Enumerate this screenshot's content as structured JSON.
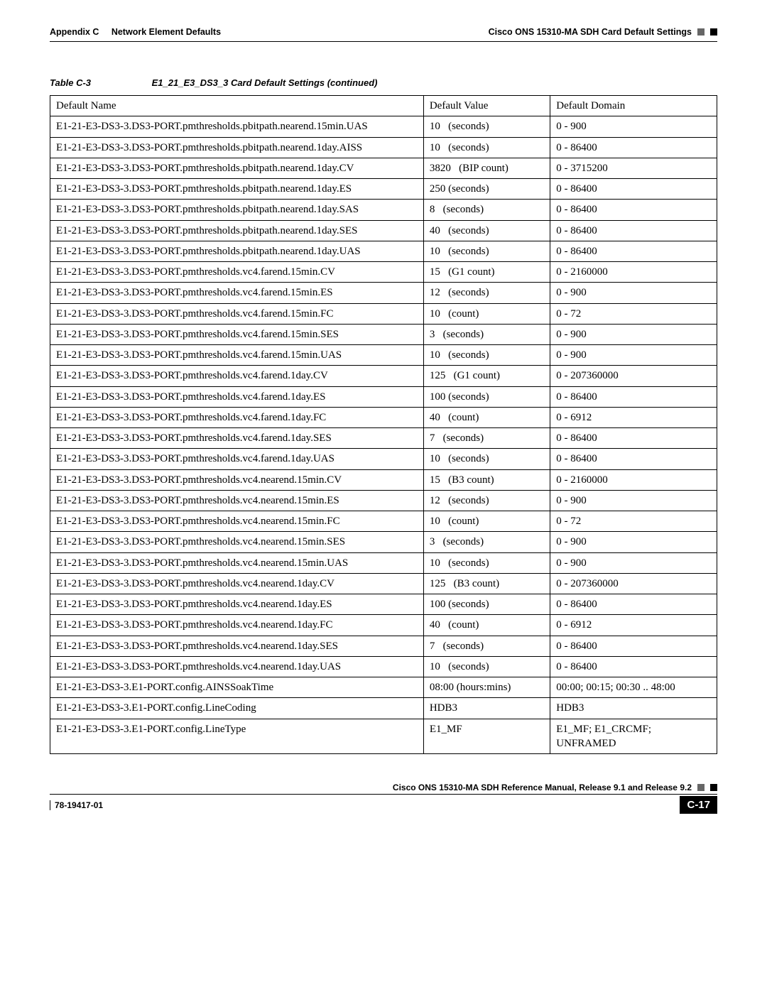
{
  "header": {
    "appendix": "Appendix C",
    "appendix_title": "Network Element Defaults",
    "section_title": "Cisco ONS 15310-MA SDH Card Default Settings"
  },
  "table": {
    "label": "Table C-3",
    "title": "E1_21_E3_DS3_3 Card Default Settings (continued)",
    "columns": [
      "Default Name",
      "Default Value",
      "Default Domain"
    ],
    "rows": [
      [
        "E1-21-E3-DS3-3.DS3-PORT.pmthresholds.pbitpath.nearend.15min.UAS",
        "10   (seconds)",
        "0 - 900"
      ],
      [
        "E1-21-E3-DS3-3.DS3-PORT.pmthresholds.pbitpath.nearend.1day.AISS",
        "10   (seconds)",
        "0 - 86400"
      ],
      [
        "E1-21-E3-DS3-3.DS3-PORT.pmthresholds.pbitpath.nearend.1day.CV",
        "3820   (BIP count)",
        "0 - 3715200"
      ],
      [
        "E1-21-E3-DS3-3.DS3-PORT.pmthresholds.pbitpath.nearend.1day.ES",
        "250 (seconds)",
        "0 - 86400"
      ],
      [
        "E1-21-E3-DS3-3.DS3-PORT.pmthresholds.pbitpath.nearend.1day.SAS",
        "8   (seconds)",
        "0 - 86400"
      ],
      [
        "E1-21-E3-DS3-3.DS3-PORT.pmthresholds.pbitpath.nearend.1day.SES",
        "40   (seconds)",
        "0 - 86400"
      ],
      [
        "E1-21-E3-DS3-3.DS3-PORT.pmthresholds.pbitpath.nearend.1day.UAS",
        "10   (seconds)",
        "0 - 86400"
      ],
      [
        "E1-21-E3-DS3-3.DS3-PORT.pmthresholds.vc4.farend.15min.CV",
        "15   (G1 count)",
        "0 - 2160000"
      ],
      [
        "E1-21-E3-DS3-3.DS3-PORT.pmthresholds.vc4.farend.15min.ES",
        "12   (seconds)",
        "0 - 900"
      ],
      [
        "E1-21-E3-DS3-3.DS3-PORT.pmthresholds.vc4.farend.15min.FC",
        "10   (count)",
        "0 - 72"
      ],
      [
        "E1-21-E3-DS3-3.DS3-PORT.pmthresholds.vc4.farend.15min.SES",
        "3   (seconds)",
        "0 - 900"
      ],
      [
        "E1-21-E3-DS3-3.DS3-PORT.pmthresholds.vc4.farend.15min.UAS",
        "10   (seconds)",
        "0 - 900"
      ],
      [
        "E1-21-E3-DS3-3.DS3-PORT.pmthresholds.vc4.farend.1day.CV",
        "125   (G1 count)",
        "0 - 207360000"
      ],
      [
        "E1-21-E3-DS3-3.DS3-PORT.pmthresholds.vc4.farend.1day.ES",
        "100 (seconds)",
        "0 - 86400"
      ],
      [
        "E1-21-E3-DS3-3.DS3-PORT.pmthresholds.vc4.farend.1day.FC",
        "40   (count)",
        "0 - 6912"
      ],
      [
        "E1-21-E3-DS3-3.DS3-PORT.pmthresholds.vc4.farend.1day.SES",
        "7   (seconds)",
        "0 - 86400"
      ],
      [
        "E1-21-E3-DS3-3.DS3-PORT.pmthresholds.vc4.farend.1day.UAS",
        "10   (seconds)",
        "0 - 86400"
      ],
      [
        "E1-21-E3-DS3-3.DS3-PORT.pmthresholds.vc4.nearend.15min.CV",
        "15   (B3 count)",
        "0 - 2160000"
      ],
      [
        "E1-21-E3-DS3-3.DS3-PORT.pmthresholds.vc4.nearend.15min.ES",
        "12   (seconds)",
        "0 - 900"
      ],
      [
        "E1-21-E3-DS3-3.DS3-PORT.pmthresholds.vc4.nearend.15min.FC",
        "10   (count)",
        "0 - 72"
      ],
      [
        "E1-21-E3-DS3-3.DS3-PORT.pmthresholds.vc4.nearend.15min.SES",
        "3   (seconds)",
        "0 - 900"
      ],
      [
        "E1-21-E3-DS3-3.DS3-PORT.pmthresholds.vc4.nearend.15min.UAS",
        "10   (seconds)",
        "0 - 900"
      ],
      [
        "E1-21-E3-DS3-3.DS3-PORT.pmthresholds.vc4.nearend.1day.CV",
        "125   (B3 count)",
        "0 - 207360000"
      ],
      [
        "E1-21-E3-DS3-3.DS3-PORT.pmthresholds.vc4.nearend.1day.ES",
        "100 (seconds)",
        "0 - 86400"
      ],
      [
        "E1-21-E3-DS3-3.DS3-PORT.pmthresholds.vc4.nearend.1day.FC",
        "40   (count)",
        "0 - 6912"
      ],
      [
        "E1-21-E3-DS3-3.DS3-PORT.pmthresholds.vc4.nearend.1day.SES",
        "7   (seconds)",
        "0 - 86400"
      ],
      [
        "E1-21-E3-DS3-3.DS3-PORT.pmthresholds.vc4.nearend.1day.UAS",
        "10   (seconds)",
        "0 - 86400"
      ],
      [
        "E1-21-E3-DS3-3.E1-PORT.config.AINSSoakTime",
        "08:00 (hours:mins)",
        "00:00; 00:15; 00:30 .. 48:00"
      ],
      [
        "E1-21-E3-DS3-3.E1-PORT.config.LineCoding",
        "HDB3",
        "HDB3"
      ],
      [
        "E1-21-E3-DS3-3.E1-PORT.config.LineType",
        "E1_MF",
        "E1_MF; E1_CRCMF; UNFRAMED"
      ]
    ]
  },
  "footer": {
    "manual_title": "Cisco ONS 15310-MA SDH Reference Manual, Release 9.1 and Release 9.2",
    "doc_number": "78-19417-01",
    "page_number": "C-17"
  }
}
